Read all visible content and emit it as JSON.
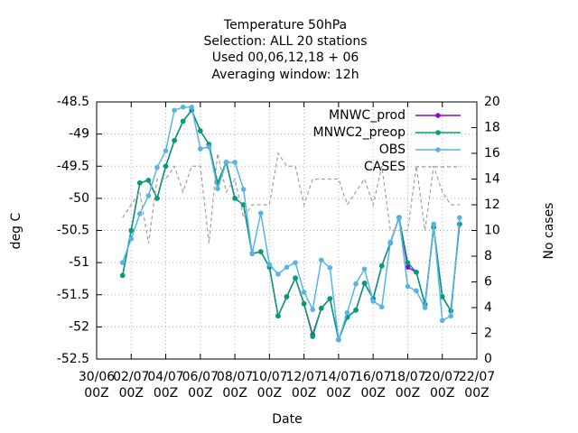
{
  "chart_data": {
    "type": "line",
    "title": "Temperature 50hPa",
    "subtitle": [
      "Selection: ALL      20 stations",
      "Used  00,06,12,18 + 06",
      "Averaging window: 12h"
    ],
    "xlabel": "Date",
    "ylabel": "deg C",
    "y2label": "No cases",
    "xlim": [
      0,
      22
    ],
    "xticks": [
      {
        "value": 0,
        "label": [
          "30/06",
          "00Z"
        ]
      },
      {
        "value": 2,
        "label": [
          "02/07",
          "00Z"
        ]
      },
      {
        "value": 4,
        "label": [
          "04/07",
          "00Z"
        ]
      },
      {
        "value": 6,
        "label": [
          "06/07",
          "00Z"
        ]
      },
      {
        "value": 8,
        "label": [
          "08/07",
          "00Z"
        ]
      },
      {
        "value": 10,
        "label": [
          "10/07",
          "00Z"
        ]
      },
      {
        "value": 12,
        "label": [
          "12/07",
          "00Z"
        ]
      },
      {
        "value": 14,
        "label": [
          "14/07",
          "00Z"
        ]
      },
      {
        "value": 16,
        "label": [
          "16/07",
          "00Z"
        ]
      },
      {
        "value": 18,
        "label": [
          "18/07",
          "00Z"
        ]
      },
      {
        "value": 20,
        "label": [
          "20/07",
          "00Z"
        ]
      },
      {
        "value": 22,
        "label": [
          "22/07",
          "00Z"
        ]
      }
    ],
    "ylim": [
      -52.5,
      -48.5
    ],
    "yticks": [
      -52.5,
      -52,
      -51.5,
      -51,
      -50.5,
      -50,
      -49.5,
      -49,
      -48.5
    ],
    "y2lim": [
      0,
      20
    ],
    "y2ticks": [
      0,
      2,
      4,
      6,
      8,
      10,
      12,
      14,
      16,
      18,
      20
    ],
    "grid": true,
    "legend": "top-right",
    "x": [
      1.5,
      2,
      2.5,
      3,
      3.5,
      4,
      4.5,
      5,
      5.5,
      6,
      6.5,
      7,
      7.5,
      8,
      8.5,
      9,
      9.5,
      10,
      10.5,
      11,
      11.5,
      12,
      12.5,
      13,
      13.5,
      14,
      14.5,
      15,
      15.5,
      16,
      16.5,
      17,
      17.5,
      18,
      18.5,
      19,
      19.5,
      20,
      20.5,
      21
    ],
    "series": [
      {
        "name": "MNWC_prod",
        "color": "#9400d3",
        "dashed": false,
        "values": [
          -51.2,
          -50.5,
          -49.76,
          -49.72,
          -50.0,
          -49.5,
          -49.1,
          -48.8,
          -48.63,
          -48.95,
          -49.16,
          -49.76,
          -49.44,
          -50.0,
          -50.1,
          -50.86,
          -50.83,
          -51.07,
          -51.83,
          -51.53,
          -51.24,
          -51.64,
          -52.12,
          -51.71,
          -51.56,
          -52.2,
          -51.85,
          -51.74,
          -51.32,
          -51.56,
          -51.05,
          -50.69,
          -50.3,
          -51.07,
          -51.15,
          -51.65,
          -50.45,
          -51.53,
          -51.75,
          -50.4
        ]
      },
      {
        "name": "MNWC2_preop",
        "color": "#009e73",
        "dashed": false,
        "values": [
          -51.2,
          -50.5,
          -49.76,
          -49.72,
          -50.0,
          -49.5,
          -49.1,
          -48.8,
          -48.63,
          -48.95,
          -49.16,
          -49.76,
          -49.44,
          -50.0,
          -50.1,
          -50.86,
          -50.83,
          -51.07,
          -51.83,
          -51.53,
          -51.24,
          -51.64,
          -52.15,
          -51.71,
          -51.56,
          -52.2,
          -51.85,
          -51.74,
          -51.32,
          -51.56,
          -51.05,
          -50.69,
          -50.3,
          -51.0,
          -51.15,
          -51.65,
          -50.45,
          -51.53,
          -51.75,
          -50.4
        ]
      },
      {
        "name": "OBS",
        "color": "#56b4e9",
        "dashed": false,
        "values": [
          -51.0,
          -50.63,
          -50.24,
          -49.96,
          -49.52,
          -49.26,
          -48.63,
          -48.58,
          -48.58,
          -49.23,
          -49.2,
          -49.85,
          -49.44,
          -49.44,
          -49.86,
          -50.86,
          -50.23,
          -51.03,
          -51.18,
          -51.07,
          -51.0,
          -51.46,
          -51.73,
          -50.96,
          -51.08,
          -52.2,
          -51.78,
          -51.33,
          -51.1,
          -51.6,
          -51.69,
          -50.68,
          -50.31,
          -51.37,
          -51.44,
          -51.7,
          -50.4,
          -51.9,
          -51.83,
          -50.3
        ]
      },
      {
        "name": "CASES",
        "color": "#a0a0a0",
        "dashed": true,
        "axis": "y2",
        "values": [
          11,
          12,
          13,
          9,
          14,
          14,
          15,
          13,
          15,
          15,
          9,
          16,
          13,
          14,
          11,
          12,
          12,
          12,
          16,
          15,
          15,
          12,
          14,
          14,
          14,
          14,
          12,
          13,
          14,
          12,
          15,
          10,
          10,
          10,
          15,
          10,
          15,
          13,
          12,
          12
        ]
      }
    ]
  }
}
